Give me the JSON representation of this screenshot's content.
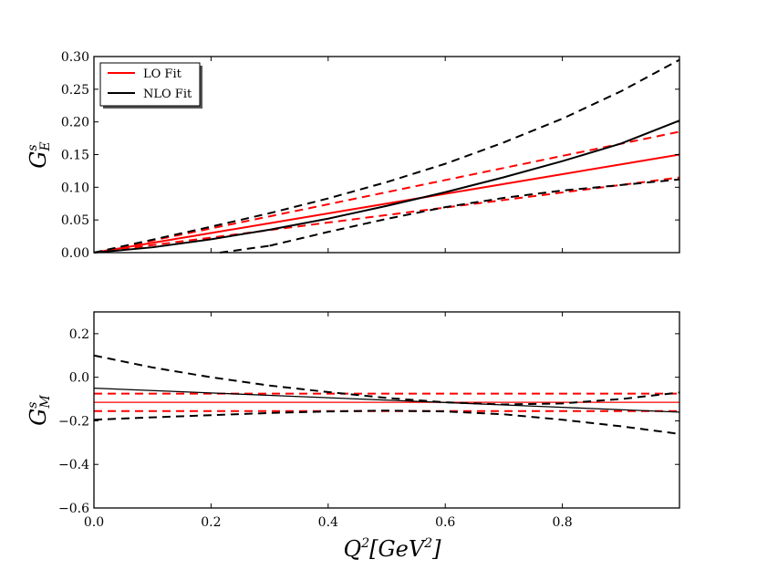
{
  "chart_data": [
    {
      "type": "line",
      "id": "top",
      "ylabel": "G_E^s",
      "ylabel_main": "G",
      "ylabel_sup": "s",
      "ylabel_sub": "E",
      "xlim": [
        0.0,
        1.0
      ],
      "ylim": [
        0.0,
        0.3
      ],
      "xticks": [
        0.0,
        0.2,
        0.4,
        0.6,
        0.8
      ],
      "yticks": [
        0.0,
        0.05,
        0.1,
        0.15,
        0.2,
        0.25,
        0.3
      ],
      "ytick_labels": [
        "0.00",
        "0.05",
        "0.10",
        "0.15",
        "0.20",
        "0.25",
        "0.30"
      ],
      "show_x_tick_labels": false,
      "legend": {
        "location": "top-left",
        "entries": [
          {
            "label": "LO Fit",
            "color": "#ff0000"
          },
          {
            "label": "NLO Fit",
            "color": "#000000"
          }
        ]
      },
      "x": [
        0.0,
        0.1,
        0.2,
        0.3,
        0.4,
        0.5,
        0.6,
        0.7,
        0.8,
        0.9,
        1.0
      ],
      "series": [
        {
          "name": "LO Fit",
          "color": "#ff0000",
          "dash": false,
          "width": 2,
          "values": [
            0.0,
            0.015,
            0.03,
            0.045,
            0.06,
            0.075,
            0.09,
            0.105,
            0.12,
            0.135,
            0.15
          ]
        },
        {
          "name": "LO Fit upper",
          "color": "#ff0000",
          "dash": true,
          "width": 2,
          "values": [
            0.0,
            0.0185,
            0.037,
            0.0555,
            0.074,
            0.0925,
            0.111,
            0.1295,
            0.148,
            0.1665,
            0.185
          ]
        },
        {
          "name": "LO Fit lower",
          "color": "#ff0000",
          "dash": true,
          "width": 2,
          "values": [
            0.0,
            0.0115,
            0.023,
            0.0345,
            0.046,
            0.0575,
            0.069,
            0.0805,
            0.092,
            0.1035,
            0.115
          ]
        },
        {
          "name": "NLO Fit",
          "color": "#000000",
          "dash": false,
          "width": 2,
          "values": [
            0.0,
            0.0081,
            0.0204,
            0.0351,
            0.052,
            0.0715,
            0.0924,
            0.1153,
            0.14,
            0.1668,
            0.202
          ]
        },
        {
          "name": "NLO Fit upper",
          "color": "#000000",
          "dash": true,
          "width": 2,
          "values": [
            0.0,
            0.0198,
            0.0397,
            0.0603,
            0.0829,
            0.1079,
            0.1359,
            0.1686,
            0.2049,
            0.2468,
            0.295
          ]
        },
        {
          "name": "NLO Fit lower",
          "color": "#000000",
          "dash": true,
          "width": 2,
          "values": [
            null,
            null,
            null,
            0.0105,
            0.0317,
            0.0516,
            0.0696,
            0.0837,
            0.095,
            0.1034,
            0.112
          ]
        },
        {
          "name": "NLO Fit lower start",
          "color": "#000000",
          "dash": true,
          "width": 2,
          "points": [
            [
              0.215,
              0.0
            ],
            [
              0.3,
              0.0105
            ]
          ]
        }
      ]
    },
    {
      "type": "line",
      "id": "bottom",
      "ylabel": "G_M^s",
      "ylabel_main": "G",
      "ylabel_sup": "s",
      "ylabel_sub": "M",
      "xlabel_main": "Q",
      "xlabel_sup": "2",
      "xlabel_bracket": "[GeV",
      "xlabel_bracket_sup": "2",
      "xlabel_close": "]",
      "xlim": [
        0.0,
        1.0
      ],
      "ylim": [
        -0.6,
        0.3
      ],
      "xticks": [
        0.0,
        0.2,
        0.4,
        0.6,
        0.8
      ],
      "xtick_labels": [
        "0.0",
        "0.2",
        "0.4",
        "0.6",
        "0.8"
      ],
      "yticks": [
        -0.6,
        -0.4,
        -0.2,
        0.0,
        0.2
      ],
      "ytick_labels": [
        "−0.6",
        "−0.4",
        "−0.2",
        "0.0",
        "0.2"
      ],
      "x": [
        0.0,
        0.1,
        0.2,
        0.3,
        0.4,
        0.5,
        0.6,
        0.7,
        0.8,
        0.9,
        1.0
      ],
      "series": [
        {
          "name": "LO Fit",
          "color": "#ff0000",
          "dash": false,
          "width": 1.3,
          "values": [
            -0.115,
            -0.115,
            -0.115,
            -0.115,
            -0.115,
            -0.115,
            -0.115,
            -0.115,
            -0.115,
            -0.115,
            -0.115
          ]
        },
        {
          "name": "LO Fit upper",
          "color": "#ff0000",
          "dash": true,
          "width": 2,
          "values": [
            -0.075,
            -0.075,
            -0.075,
            -0.075,
            -0.075,
            -0.075,
            -0.075,
            -0.075,
            -0.075,
            -0.075,
            -0.075
          ]
        },
        {
          "name": "LO Fit lower",
          "color": "#ff0000",
          "dash": true,
          "width": 2,
          "values": [
            -0.155,
            -0.155,
            -0.155,
            -0.155,
            -0.155,
            -0.155,
            -0.155,
            -0.155,
            -0.155,
            -0.155,
            -0.155
          ]
        },
        {
          "name": "NLO Fit",
          "color": "#000000",
          "dash": false,
          "width": 1.3,
          "values": [
            -0.05,
            -0.061,
            -0.072,
            -0.083,
            -0.094,
            -0.105,
            -0.116,
            -0.127,
            -0.138,
            -0.149,
            -0.16
          ]
        },
        {
          "name": "NLO Fit upper",
          "color": "#000000",
          "dash": true,
          "width": 2,
          "values": [
            0.1,
            0.045,
            0.0,
            -0.038,
            -0.068,
            -0.095,
            -0.115,
            -0.125,
            -0.12,
            -0.1,
            -0.07
          ]
        },
        {
          "name": "NLO Fit lower",
          "color": "#000000",
          "dash": true,
          "width": 2,
          "values": [
            -0.195,
            -0.184,
            -0.174,
            -0.164,
            -0.157,
            -0.153,
            -0.157,
            -0.17,
            -0.195,
            -0.225,
            -0.26
          ]
        }
      ]
    }
  ]
}
